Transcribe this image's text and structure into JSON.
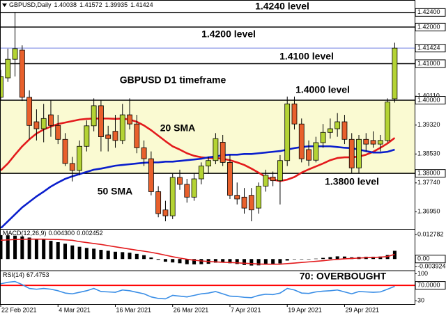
{
  "chart_data": [
    {
      "type": "candlestick",
      "title": "GBPUSD,Daily",
      "readout": [
        1.40038,
        1.41572,
        1.39935,
        1.41424
      ],
      "annotation": "GBPUSD D1 timeframe",
      "categories": [
        "22 Feb 2021",
        null,
        null,
        null,
        null,
        null,
        null,
        null,
        "4 Mar 2021",
        null,
        null,
        null,
        null,
        null,
        null,
        null,
        "16 Mar 2021",
        null,
        null,
        null,
        null,
        null,
        null,
        null,
        "26 Mar 2021",
        null,
        null,
        null,
        null,
        null,
        null,
        null,
        "7 Apr 2021",
        null,
        null,
        null,
        null,
        null,
        null,
        null,
        "19 Apr 2021",
        null,
        null,
        null,
        null,
        null,
        null,
        null,
        "29 Apr 2021",
        null,
        null,
        null,
        null,
        null,
        null,
        null
      ],
      "open": [
        1.4008,
        1.4061,
        1.4112,
        1.4137,
        1.4008,
        1.3941,
        1.3922,
        1.396,
        1.3931,
        1.3893,
        1.3827,
        1.3808,
        1.3874,
        1.393,
        1.3985,
        1.3905,
        1.3915,
        1.389,
        1.396,
        1.3935,
        1.387,
        1.384,
        1.375,
        1.37,
        1.3684,
        1.3789,
        1.377,
        1.3735,
        1.3785,
        1.382,
        1.3835,
        1.3885,
        1.383,
        1.374,
        1.3735,
        1.374,
        1.3705,
        1.3765,
        1.379,
        1.378,
        1.3835,
        1.399,
        1.3935,
        1.3865,
        1.3836,
        1.3884,
        1.3912,
        1.3922,
        1.3941,
        1.3893,
        1.3815,
        1.3893,
        1.389,
        1.388,
        1.389,
        1.40038
      ],
      "high": [
        1.4083,
        1.4141,
        1.424,
        1.415,
        1.4027,
        1.3975,
        1.399,
        1.3999,
        1.396,
        1.391,
        1.3845,
        1.389,
        1.3945,
        1.4005,
        1.4,
        1.393,
        1.396,
        1.399,
        1.4005,
        1.396,
        1.389,
        1.386,
        1.3765,
        1.3725,
        1.38,
        1.381,
        1.3785,
        1.38,
        1.383,
        1.3845,
        1.391,
        1.3905,
        1.385,
        1.3775,
        1.376,
        1.376,
        1.3775,
        1.381,
        1.3805,
        1.385,
        1.401,
        1.401,
        1.395,
        1.389,
        1.39,
        1.3935,
        1.395,
        1.3965,
        1.396,
        1.391,
        1.3905,
        1.391,
        1.3915,
        1.3905,
        1.4005,
        1.41572
      ],
      "low": [
        1.3999,
        1.405,
        1.4065,
        1.3998,
        1.3893,
        1.389,
        1.3885,
        1.39,
        1.388,
        1.382,
        1.3778,
        1.3795,
        1.386,
        1.3915,
        1.386,
        1.386,
        1.387,
        1.388,
        1.392,
        1.3855,
        1.382,
        1.374,
        1.368,
        1.3669,
        1.3675,
        1.3755,
        1.372,
        1.3725,
        1.377,
        1.38,
        1.3825,
        1.382,
        1.373,
        1.3715,
        1.369,
        1.3669,
        1.369,
        1.375,
        1.3765,
        1.3715,
        1.382,
        1.392,
        1.383,
        1.382,
        1.383,
        1.387,
        1.3895,
        1.39,
        1.388,
        1.38,
        1.38,
        1.386,
        1.387,
        1.386,
        1.3885,
        1.39935
      ],
      "close": [
        1.4065,
        1.4112,
        1.4141,
        1.4008,
        1.3931,
        1.3922,
        1.395,
        1.3931,
        1.3893,
        1.3827,
        1.3808,
        1.3874,
        1.393,
        1.3985,
        1.39,
        1.3895,
        1.389,
        1.396,
        1.3935,
        1.387,
        1.384,
        1.375,
        1.369,
        1.3684,
        1.3789,
        1.377,
        1.3735,
        1.3785,
        1.382,
        1.3835,
        1.3895,
        1.383,
        1.374,
        1.373,
        1.3705,
        1.37,
        1.3765,
        1.3795,
        1.378,
        1.3835,
        1.399,
        1.3935,
        1.384,
        1.3836,
        1.3884,
        1.3912,
        1.3922,
        1.3941,
        1.3893,
        1.3815,
        1.3893,
        1.388,
        1.388,
        1.389,
        1.3995,
        1.41424
      ],
      "up_color": "#b4d334",
      "down_color": "#e8602c",
      "last_price_color": "#6f7fe0",
      "zone": [
        1.38,
        1.4
      ],
      "zone_color": "#fafad2",
      "series": [
        {
          "name": "20 SMA",
          "color": "#e31a1c",
          "values": [
            1.3808,
            1.3827,
            1.3851,
            1.3874,
            1.3893,
            1.3909,
            1.392,
            1.3928,
            1.3935,
            1.3939,
            1.3943,
            1.3947,
            1.3949,
            1.395,
            1.395,
            1.395,
            1.3949,
            1.395,
            1.3947,
            1.3941,
            1.3931,
            1.3918,
            1.3903,
            1.3888,
            1.3874,
            1.3865,
            1.3855,
            1.3848,
            1.3844,
            1.3842,
            1.3842,
            1.384,
            1.3836,
            1.383,
            1.3823,
            1.3813,
            1.3802,
            1.379,
            1.3783,
            1.3779,
            1.3783,
            1.379,
            1.3802,
            1.3811,
            1.3819,
            1.3827,
            1.3836,
            1.3842,
            1.3844,
            1.3844,
            1.3846,
            1.3851,
            1.3859,
            1.387,
            1.3882,
            1.3897
          ]
        },
        {
          "name": "50 SMA",
          "color": "#0a1ecc",
          "values": [
            1.365,
            1.3669,
            1.3688,
            1.3707,
            1.3722,
            1.3737,
            1.375,
            1.3764,
            1.3775,
            1.3785,
            1.3792,
            1.3798,
            1.3804,
            1.381,
            1.3813,
            1.3817,
            1.3821,
            1.3823,
            1.3825,
            1.3827,
            1.3829,
            1.383,
            1.383,
            1.3832,
            1.3832,
            1.3834,
            1.3836,
            1.3838,
            1.384,
            1.3844,
            1.3846,
            1.385,
            1.3851,
            1.3851,
            1.3853,
            1.3853,
            1.3855,
            1.3857,
            1.3859,
            1.3861,
            1.3865,
            1.3869,
            1.3872,
            1.3874,
            1.3874,
            1.3874,
            1.3874,
            1.3872,
            1.387,
            1.3869,
            1.3865,
            1.3861,
            1.3857,
            1.3857,
            1.3859,
            1.3865
          ]
        }
      ],
      "levels": [
        {
          "value": 1.424,
          "label": "1.4240 level"
        },
        {
          "value": 1.42,
          "label": "1.4200 level"
        },
        {
          "value": 1.41,
          "label": "1.4100 level"
        },
        {
          "value": 1.4,
          "label": "1.4000 level"
        },
        {
          "value": 1.38,
          "label": "1.3800 level"
        }
      ],
      "ylim": [
        1.365,
        1.4274
      ],
      "yticks": [
        {
          "value": 1.424,
          "label": "1.42400"
        },
        {
          "value": 1.42,
          "label": "1.42000"
        },
        {
          "value": 1.41424,
          "label": "1.41424"
        },
        {
          "value": 1.41,
          "label": "1.41000"
        },
        {
          "value": 1.4011,
          "label": "1.40110"
        },
        {
          "value": 1.4,
          "label": "1.40000"
        },
        {
          "value": 1.3932,
          "label": "1.39320"
        },
        {
          "value": 1.3853,
          "label": "1.38530"
        },
        {
          "value": 1.38,
          "label": "1.38000"
        },
        {
          "value": 1.3774,
          "label": "1.37740"
        },
        {
          "value": 1.3695,
          "label": "1.36950"
        }
      ]
    },
    {
      "type": "macd",
      "title": "MACD(12,26,9)",
      "readout": [
        0.0043,
        0.002452
      ],
      "readout_labels": [
        "0.004300",
        "0.002452"
      ],
      "histogram_color": "#000000",
      "signal_color": "#e31a1c",
      "values": [
        0.0125,
        0.0124,
        0.0122,
        0.0118,
        0.0112,
        0.0106,
        0.0101,
        0.0095,
        0.0088,
        0.008,
        0.0071,
        0.0064,
        0.0058,
        0.0054,
        0.0048,
        0.0043,
        0.0038,
        0.0036,
        0.0033,
        0.0027,
        0.002,
        0.0008,
        -0.0004,
        -0.0014,
        -0.0018,
        -0.0022,
        -0.0027,
        -0.0028,
        -0.0027,
        -0.0025,
        -0.0019,
        -0.0017,
        -0.0022,
        -0.0026,
        -0.0031,
        -0.0034,
        -0.0033,
        -0.003,
        -0.0028,
        -0.0023,
        -0.0008,
        -0.0002,
        -0.0002,
        -0.0002,
        0.0002,
        0.0006,
        0.001,
        0.0014,
        0.0013,
        0.0009,
        0.0011,
        0.0012,
        0.0012,
        0.0013,
        0.0021,
        0.0043
      ],
      "signal": [
        0.0098,
        0.01,
        0.0102,
        0.0103,
        0.0104,
        0.0104,
        0.0104,
        0.0103,
        0.0102,
        0.01,
        0.0098,
        0.0091,
        0.0086,
        0.0081,
        0.0076,
        0.007,
        0.0064,
        0.0058,
        0.0052,
        0.0046,
        0.0041,
        0.0035,
        0.0028,
        0.002,
        0.0012,
        0.0005,
        -0.0001,
        -0.0006,
        -0.001,
        -0.0013,
        -0.0015,
        -0.0017,
        -0.0018,
        -0.002,
        -0.0022,
        -0.0024,
        -0.0026,
        -0.0027,
        -0.0027,
        -0.0027,
        -0.0024,
        -0.0021,
        -0.0018,
        -0.0015,
        -0.0012,
        -0.0009,
        -0.0005,
        -0.0002,
        0.0001,
        0.0003,
        0.0005,
        0.0007,
        0.0008,
        0.001,
        0.0013,
        0.002452
      ],
      "ylim": [
        -0.005,
        0.015
      ],
      "yticks": [
        0.012782,
        {
          "value": 0,
          "label": "0.00"
        },
        -0.003924
      ]
    },
    {
      "type": "rsi",
      "title": "RSI(14)",
      "readout": 67.4753,
      "color": "#3a8ee6",
      "level": {
        "value": 70,
        "label": "70: OVERBOUGHT",
        "color": "#ff0000"
      },
      "values": [
        74,
        78,
        80,
        72,
        62,
        60,
        62,
        60,
        56,
        50,
        48,
        52,
        56,
        62,
        54,
        53,
        52,
        58,
        56,
        52,
        48,
        40,
        36,
        35,
        44,
        42,
        40,
        44,
        48,
        50,
        54,
        48,
        42,
        41,
        39,
        38,
        44,
        47,
        46,
        50,
        62,
        58,
        50,
        49,
        53,
        55,
        56,
        58,
        53,
        48,
        54,
        53,
        52,
        53,
        60,
        67.4753
      ],
      "ylim": [
        20,
        105
      ],
      "yticks": [
        100,
        {
          "value": 70,
          "label": "70.0000"
        },
        30
      ]
    }
  ]
}
